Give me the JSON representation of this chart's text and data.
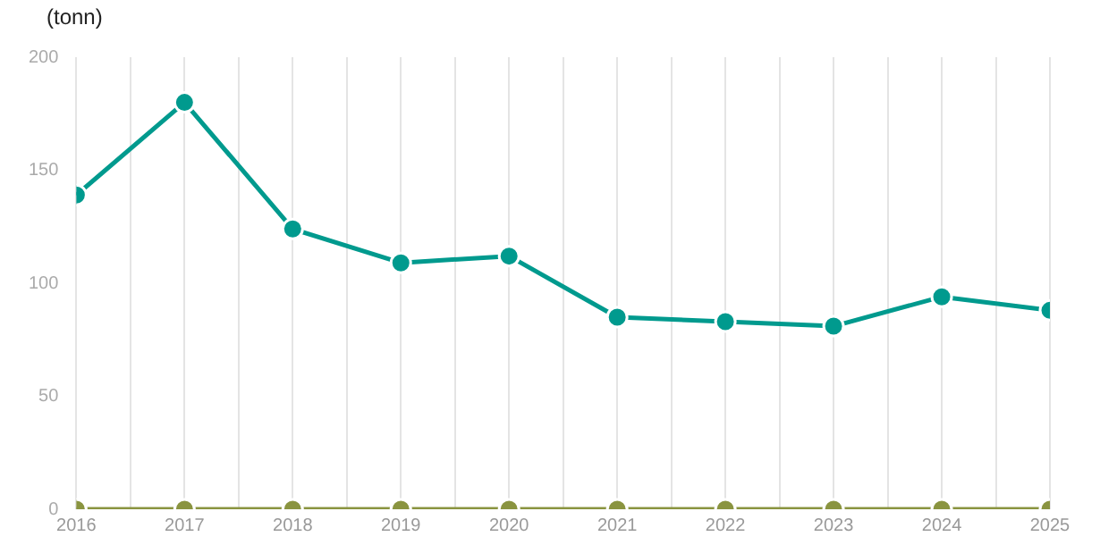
{
  "chart_data": {
    "type": "line",
    "ylabel": "(tonn)",
    "x": [
      2016,
      2017,
      2018,
      2019,
      2020,
      2021,
      2022,
      2023,
      2024,
      2025
    ],
    "series": [
      {
        "color": "#009a8e",
        "values": [
          139,
          180,
          124,
          109,
          112,
          85,
          83,
          81,
          94,
          88
        ]
      },
      {
        "color": "#8a9440",
        "values": [
          0,
          0,
          0,
          0,
          0,
          0,
          0,
          0,
          0,
          0
        ]
      }
    ],
    "xlim": [
      2016,
      2025
    ],
    "xticks": [
      2016,
      {
        "value": 2016.5,
        "label": null
      },
      2017,
      {
        "value": 2017.5,
        "label": null
      },
      2018,
      {
        "value": 2018.5,
        "label": null
      },
      2019,
      {
        "value": 2019.5,
        "label": null
      },
      2020,
      {
        "value": 2020.5,
        "label": null
      },
      2021,
      {
        "value": 2021.5,
        "label": null
      },
      2022,
      {
        "value": 2022.5,
        "label": null
      },
      2023,
      {
        "value": 2023.5,
        "label": null
      },
      2024,
      {
        "value": 2024.5,
        "label": null
      },
      2025
    ],
    "ylim": [
      0,
      200
    ],
    "yticks": [
      0,
      50,
      100,
      150,
      200
    ],
    "grid": "x",
    "legend": false,
    "marker": "circle",
    "line_style": "solid"
  }
}
